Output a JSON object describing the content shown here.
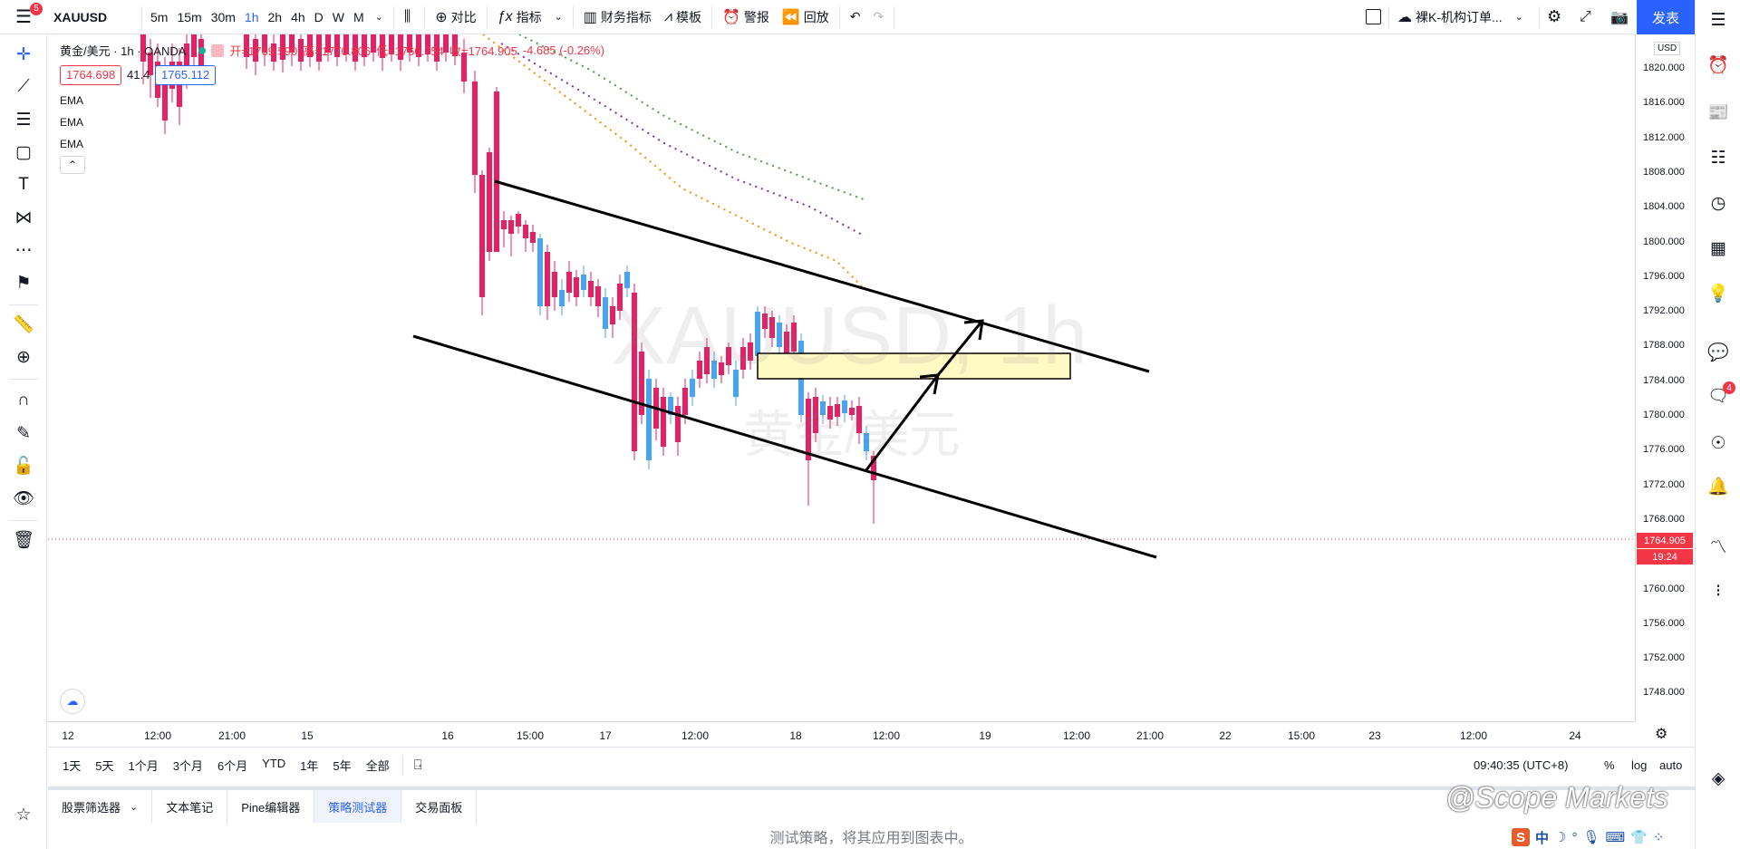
{
  "topbar": {
    "symbol": "XAUUSD",
    "intervals": [
      "5m",
      "15m",
      "30m",
      "1h",
      "2h",
      "4h",
      "D",
      "W",
      "M"
    ],
    "active_interval": "1h",
    "compare": "对比",
    "indicators": "指标",
    "financials": "财务指标",
    "templates": "模板",
    "alerts": "警报",
    "replay": "回放",
    "layout_name": "裸K-机构订单...",
    "publish": "发表",
    "menu_badge": "5"
  },
  "legend": {
    "title": "黄金/美元 · 1h · OANDA",
    "open": "开=1769.590",
    "high": "高=1770.806",
    "low": "低=1760.754",
    "close": "收=1764.905",
    "change": "-4.685 (-0.26%)",
    "bid": "1764.698",
    "spread": "41.4",
    "ask": "1765.112",
    "ema_labels": [
      "EMA",
      "EMA",
      "EMA"
    ]
  },
  "watermark": {
    "symbol": "XAUUSD, 1h",
    "name": "黄金/美元"
  },
  "price_axis": {
    "currency": "USD",
    "ticks": [
      "1820.000",
      "1816.000",
      "1812.000",
      "1808.000",
      "1804.000",
      "1800.000",
      "1796.000",
      "1792.000",
      "1788.000",
      "1784.000",
      "1780.000",
      "1776.000",
      "1772.000",
      "1768.000",
      "1764.000",
      "1760.000",
      "1756.000",
      "1752.000",
      "1748.000"
    ],
    "current_price": "1764.905",
    "countdown": "19:24"
  },
  "time_axis": {
    "ticks": [
      "12",
      "12:00",
      "21:00",
      "15",
      "16",
      "15:00",
      "17",
      "12:00",
      "18",
      "12:00",
      "19",
      "12:00",
      "21:00",
      "22",
      "15:00",
      "23",
      "12:00",
      "24"
    ]
  },
  "range_bar": {
    "ranges": [
      "1天",
      "5天",
      "1个月",
      "3个月",
      "6个月",
      "YTD",
      "1年",
      "5年",
      "全部"
    ],
    "clock": "09:40:35 (UTC+8)",
    "percent": "%",
    "log": "log",
    "auto": "auto"
  },
  "tabs": [
    "股票筛选器",
    "文本笔记",
    "Pine编辑器",
    "策略测试器",
    "交易面板"
  ],
  "active_tab": "策略测试器",
  "bottom_message": "测试策略，将其应用到图表中。",
  "overlay": {
    "watermark_text": "@Scope Markets",
    "ime_label": "中"
  },
  "right_badge": "4",
  "colors": {
    "up": "#42a5f5",
    "down": "#e91e63",
    "accent": "#2962ff",
    "red": "#f23645"
  }
}
